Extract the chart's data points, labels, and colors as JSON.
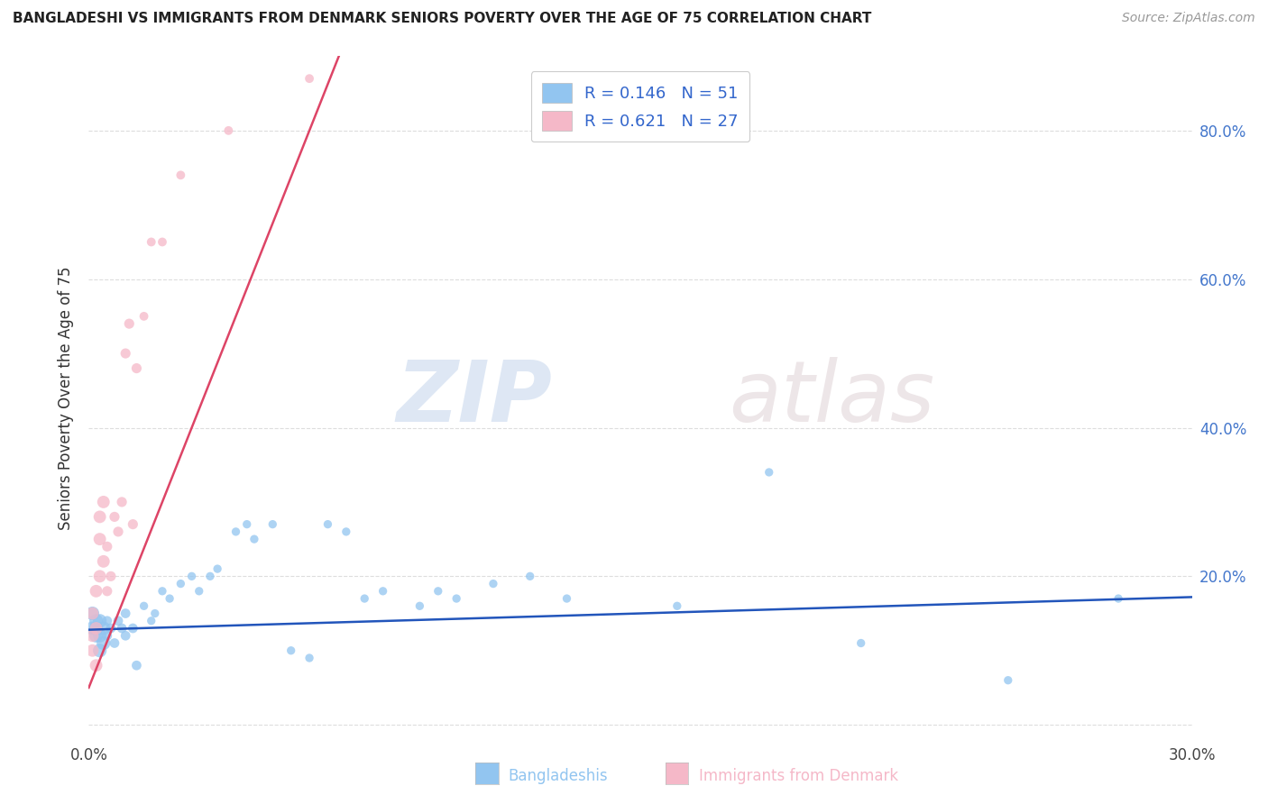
{
  "title": "BANGLADESHI VS IMMIGRANTS FROM DENMARK SENIORS POVERTY OVER THE AGE OF 75 CORRELATION CHART",
  "source": "Source: ZipAtlas.com",
  "ylabel_label": "Seniors Poverty Over the Age of 75",
  "xlim": [
    0.0,
    0.3
  ],
  "ylim": [
    -0.02,
    0.9
  ],
  "xtick_positions": [
    0.0,
    0.05,
    0.1,
    0.15,
    0.2,
    0.25,
    0.3
  ],
  "xtick_labels": [
    "0.0%",
    "",
    "",
    "",
    "",
    "",
    "30.0%"
  ],
  "ytick_positions": [
    0.0,
    0.2,
    0.4,
    0.6,
    0.8
  ],
  "ytick_labels": [
    "",
    "20.0%",
    "40.0%",
    "60.0%",
    "80.0%"
  ],
  "color_blue": "#92C5F0",
  "color_pink": "#F5B8C8",
  "line_blue": "#2255BB",
  "line_pink": "#DD4466",
  "watermark_zip": "ZIP",
  "watermark_atlas": "atlas",
  "bg_color": "#FFFFFF",
  "grid_color": "#DDDDDD",
  "blue_scatter_x": [
    0.001,
    0.001,
    0.002,
    0.002,
    0.002,
    0.003,
    0.003,
    0.003,
    0.004,
    0.004,
    0.005,
    0.005,
    0.006,
    0.007,
    0.008,
    0.009,
    0.01,
    0.01,
    0.012,
    0.013,
    0.015,
    0.017,
    0.018,
    0.02,
    0.022,
    0.025,
    0.028,
    0.03,
    0.033,
    0.035,
    0.04,
    0.043,
    0.045,
    0.05,
    0.055,
    0.06,
    0.065,
    0.07,
    0.075,
    0.08,
    0.09,
    0.095,
    0.1,
    0.11,
    0.12,
    0.13,
    0.16,
    0.185,
    0.21,
    0.25,
    0.28
  ],
  "blue_scatter_y": [
    0.13,
    0.15,
    0.12,
    0.14,
    0.13,
    0.1,
    0.12,
    0.14,
    0.11,
    0.13,
    0.12,
    0.14,
    0.13,
    0.11,
    0.14,
    0.13,
    0.15,
    0.12,
    0.13,
    0.08,
    0.16,
    0.14,
    0.15,
    0.18,
    0.17,
    0.19,
    0.2,
    0.18,
    0.2,
    0.21,
    0.26,
    0.27,
    0.25,
    0.27,
    0.1,
    0.09,
    0.27,
    0.26,
    0.17,
    0.18,
    0.16,
    0.18,
    0.17,
    0.19,
    0.2,
    0.17,
    0.16,
    0.34,
    0.11,
    0.06,
    0.17
  ],
  "pink_scatter_x": [
    0.001,
    0.001,
    0.001,
    0.002,
    0.002,
    0.002,
    0.003,
    0.003,
    0.003,
    0.004,
    0.004,
    0.005,
    0.005,
    0.006,
    0.007,
    0.008,
    0.009,
    0.01,
    0.011,
    0.012,
    0.013,
    0.015,
    0.017,
    0.02,
    0.025,
    0.038,
    0.06
  ],
  "pink_scatter_y": [
    0.1,
    0.12,
    0.15,
    0.13,
    0.18,
    0.08,
    0.2,
    0.25,
    0.28,
    0.22,
    0.3,
    0.18,
    0.24,
    0.2,
    0.28,
    0.26,
    0.3,
    0.5,
    0.54,
    0.27,
    0.48,
    0.55,
    0.65,
    0.65,
    0.74,
    0.8,
    0.87
  ],
  "blue_trend_x": [
    0.0,
    0.3
  ],
  "blue_trend_y": [
    0.128,
    0.172
  ],
  "pink_trend_x": [
    0.0,
    0.068
  ],
  "pink_trend_y": [
    0.05,
    0.9
  ],
  "legend_items": [
    {
      "label": "R = 0.146   N = 51",
      "color": "#92C5F0"
    },
    {
      "label": "R = 0.621   N = 27",
      "color": "#F5B8C8"
    }
  ],
  "bottom_labels": [
    {
      "text": "Bangladeshis",
      "color": "#92C5F0"
    },
    {
      "text": "Immigrants from Denmark",
      "color": "#F5B8C8"
    }
  ]
}
